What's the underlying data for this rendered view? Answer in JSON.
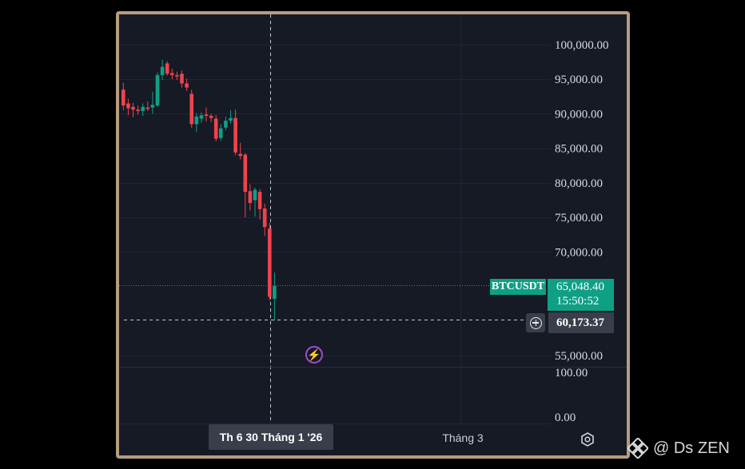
{
  "ticker": "BTCUSDT",
  "last_price": "65,048.40",
  "countdown": "15:50:52",
  "crosshair_price": "60,173.37",
  "crosshair_date": "Th 6 30 Tháng 1 '26",
  "month_label": "Tháng 3",
  "watermark_text": "@ Ds ZEN",
  "colors": {
    "up": "#0f9f85",
    "down": "#f0434d",
    "background": "#161a25",
    "frame": "#b79c80"
  },
  "icons": [
    "plus-circle-icon",
    "lightning-icon",
    "settings-icon",
    "binance-logo-icon"
  ],
  "chart_data": {
    "type": "candlestick",
    "price_axis_ticks": [
      "100,000.00",
      "95,000.00",
      "90,000.00",
      "85,000.00",
      "80,000.00",
      "75,000.00",
      "70,000.00",
      "55,000.00"
    ],
    "indicator_axis_ticks": [
      "100.00",
      "0.00"
    ],
    "ylim": [
      52000,
      103000
    ],
    "candles": [
      {
        "o": 93500,
        "h": 94500,
        "l": 90500,
        "c": 91200
      },
      {
        "o": 91500,
        "h": 92200,
        "l": 89800,
        "c": 90800
      },
      {
        "o": 91000,
        "h": 91600,
        "l": 89500,
        "c": 90600
      },
      {
        "o": 90600,
        "h": 91200,
        "l": 89900,
        "c": 90400
      },
      {
        "o": 90400,
        "h": 91500,
        "l": 89700,
        "c": 91000
      },
      {
        "o": 90900,
        "h": 91800,
        "l": 90400,
        "c": 90700
      },
      {
        "o": 90900,
        "h": 93200,
        "l": 90000,
        "c": 91300
      },
      {
        "o": 91200,
        "h": 96000,
        "l": 91000,
        "c": 95600
      },
      {
        "o": 95600,
        "h": 97800,
        "l": 94900,
        "c": 96800
      },
      {
        "o": 97300,
        "h": 97600,
        "l": 95500,
        "c": 95800
      },
      {
        "o": 95900,
        "h": 96500,
        "l": 95000,
        "c": 95600
      },
      {
        "o": 95600,
        "h": 96100,
        "l": 94900,
        "c": 95400
      },
      {
        "o": 95800,
        "h": 96300,
        "l": 93800,
        "c": 94400
      },
      {
        "o": 94400,
        "h": 95100,
        "l": 93300,
        "c": 93800
      },
      {
        "o": 92900,
        "h": 93500,
        "l": 88000,
        "c": 88500
      },
      {
        "o": 88500,
        "h": 90100,
        "l": 87400,
        "c": 89600
      },
      {
        "o": 89300,
        "h": 90200,
        "l": 88700,
        "c": 89800
      },
      {
        "o": 89900,
        "h": 90900,
        "l": 88900,
        "c": 89700
      },
      {
        "o": 89700,
        "h": 90000,
        "l": 88800,
        "c": 89400
      },
      {
        "o": 89300,
        "h": 89800,
        "l": 86000,
        "c": 86400
      },
      {
        "o": 86500,
        "h": 88500,
        "l": 86100,
        "c": 87900
      },
      {
        "o": 88000,
        "h": 89600,
        "l": 87600,
        "c": 89000
      },
      {
        "o": 89000,
        "h": 90500,
        "l": 88600,
        "c": 89400
      },
      {
        "o": 89400,
        "h": 90600,
        "l": 84000,
        "c": 84400
      },
      {
        "o": 84200,
        "h": 85800,
        "l": 83400,
        "c": 83900
      },
      {
        "o": 84100,
        "h": 84300,
        "l": 75000,
        "c": 78700
      },
      {
        "o": 78800,
        "h": 79800,
        "l": 76000,
        "c": 77100
      },
      {
        "o": 77500,
        "h": 79300,
        "l": 75100,
        "c": 79000
      },
      {
        "o": 78700,
        "h": 79100,
        "l": 74700,
        "c": 76200
      },
      {
        "o": 76300,
        "h": 77000,
        "l": 72300,
        "c": 73600
      },
      {
        "o": 73400,
        "h": 74200,
        "l": 63000,
        "c": 63500
      },
      {
        "o": 63200,
        "h": 67000,
        "l": 60100,
        "c": 65048.4
      }
    ]
  }
}
